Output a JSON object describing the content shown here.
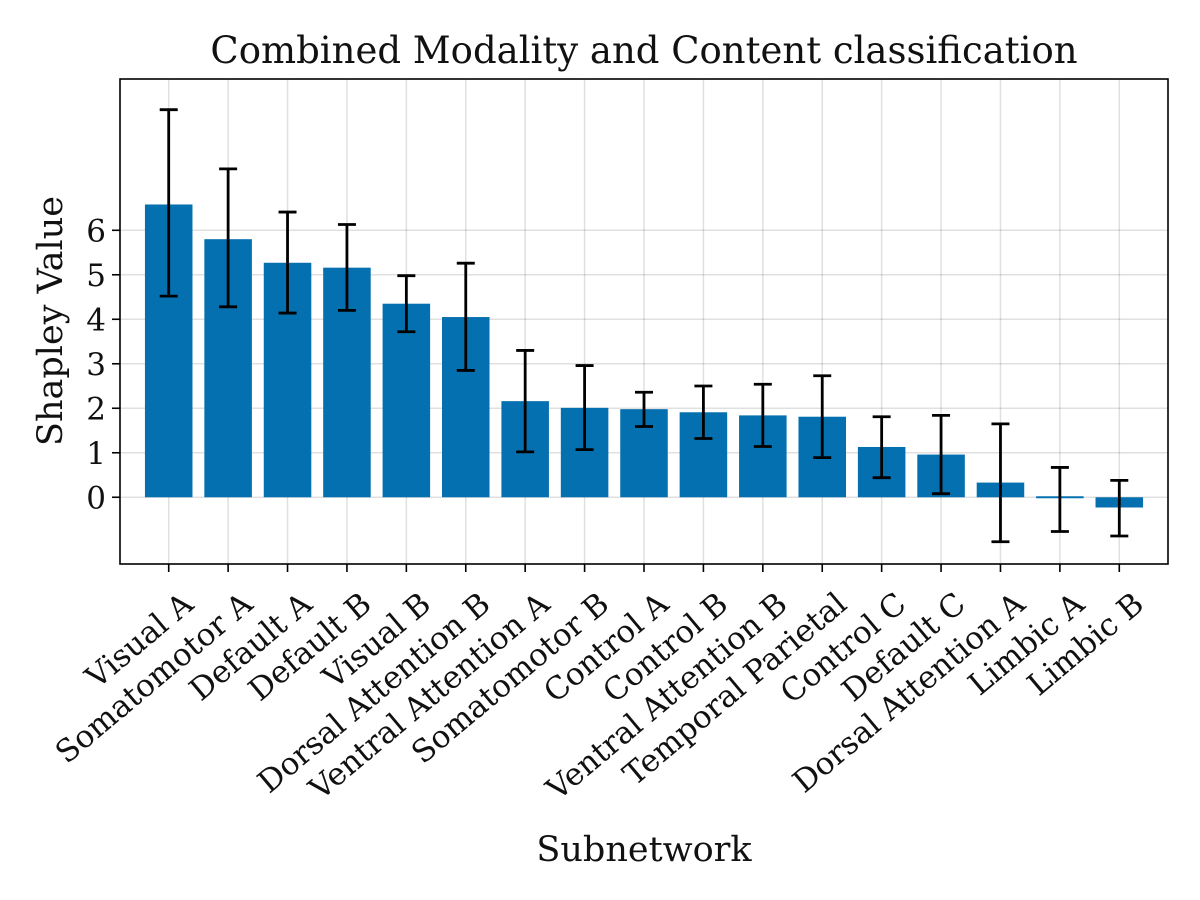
{
  "chart_data": {
    "type": "bar",
    "title": "Combined Modality and Content classification",
    "xlabel": "Subnetwork",
    "ylabel": "Shapley Value",
    "ylim": [
      -1.5,
      9.4
    ],
    "yticks": [
      0,
      1,
      2,
      3,
      4,
      5,
      6
    ],
    "grid": true,
    "bar_color": "#0570b0",
    "categories": [
      "Visual A",
      "Somatomotor A",
      "Default A",
      "Default B",
      "Visual B",
      "Dorsal Attention B",
      "Ventral Attention A",
      "Somatomotor B",
      "Control A",
      "Control B",
      "Ventral Attention B",
      "Temporal Parietal",
      "Control C",
      "Default C",
      "Dorsal Attention A",
      "Limbic A",
      "Limbic B"
    ],
    "values": [
      6.58,
      5.8,
      5.27,
      5.16,
      4.35,
      4.05,
      2.16,
      2.01,
      1.98,
      1.91,
      1.84,
      1.81,
      1.13,
      0.96,
      0.33,
      -0.02,
      -0.23
    ],
    "error_low": [
      4.52,
      4.28,
      4.14,
      4.2,
      3.72,
      2.85,
      1.02,
      1.07,
      1.59,
      1.32,
      1.14,
      0.89,
      0.44,
      0.08,
      -1.0,
      -0.77,
      -0.87
    ],
    "error_high": [
      8.71,
      7.38,
      6.41,
      6.13,
      4.98,
      5.26,
      3.3,
      2.96,
      2.36,
      2.5,
      2.54,
      2.73,
      1.81,
      1.84,
      1.65,
      0.67,
      0.38
    ]
  }
}
